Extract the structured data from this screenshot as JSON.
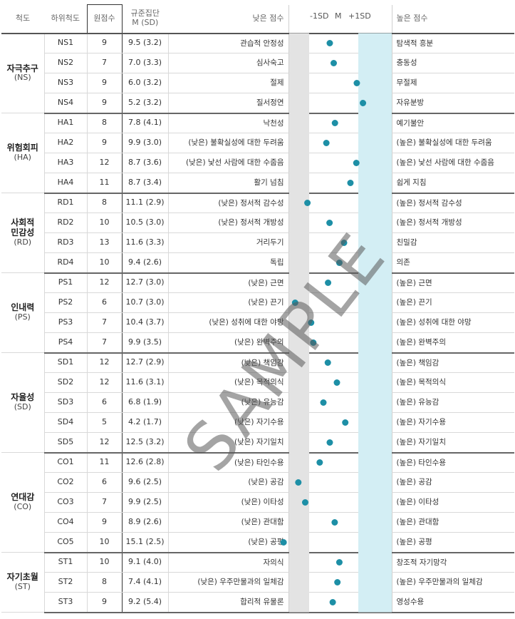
{
  "header": {
    "scale": "척도",
    "subscale": "하위척도",
    "raw": "원점수",
    "norm_line1": "규준집단",
    "norm_line2": "M (SD)",
    "low": "낮은 점수",
    "sd_minus": "-1SD",
    "mean": "M",
    "sd_plus": "+1SD",
    "high": "높은 점수"
  },
  "colors": {
    "dot": "#1d8fa6",
    "low_band": "#e3e3e3",
    "high_band": "#d3eef4"
  },
  "watermark": "SAMPLE",
  "groups": [
    {
      "name": "자극추구",
      "code": "(NS)",
      "rows": [
        {
          "sub": "NS1",
          "raw": "9",
          "norm": "9.5 (3.2)",
          "low": "관습적 안정성",
          "high": "탐색적 흥분",
          "z": -0.16
        },
        {
          "sub": "NS2",
          "raw": "7",
          "norm": "7.0 (3.3)",
          "low": "심사숙고",
          "high": "충동성",
          "z": 0.0
        },
        {
          "sub": "NS3",
          "raw": "9",
          "norm": "6.0 (3.2)",
          "low": "절제",
          "high": "무절제",
          "z": 0.94
        },
        {
          "sub": "NS4",
          "raw": "9",
          "norm": "5.2 (3.2)",
          "low": "질서정연",
          "high": "자유분방",
          "z": 1.19
        }
      ]
    },
    {
      "name": "위험회피",
      "code": "(HA)",
      "rows": [
        {
          "sub": "HA1",
          "raw": "8",
          "norm": "7.8 (4.1)",
          "low": "낙천성",
          "high": "예기불안",
          "z": 0.05
        },
        {
          "sub": "HA2",
          "raw": "9",
          "norm": "9.9 (3.0)",
          "low": "(낮은) 불확실성에 대한 두려움",
          "high": "(높은) 불확실성에 대한 두려움",
          "z": -0.3
        },
        {
          "sub": "HA3",
          "raw": "12",
          "norm": "8.7 (3.6)",
          "low": "(낮은) 낯선 사람에 대한 수줍음",
          "high": "(높은) 낯선 사람에 대한 수줍음",
          "z": 0.92
        },
        {
          "sub": "HA4",
          "raw": "11",
          "norm": "8.7 (3.4)",
          "low": "활기 넘침",
          "high": "쉽게 지침",
          "z": 0.68
        }
      ]
    },
    {
      "name": "사회적\n민감성",
      "code": "(RD)",
      "rows": [
        {
          "sub": "RD1",
          "raw": "8",
          "norm": "11.1 (2.9)",
          "low": "(낮은) 정서적 감수성",
          "high": "(높은) 정서적 감수성",
          "z": -1.07
        },
        {
          "sub": "RD2",
          "raw": "10",
          "norm": "10.5 (3.0)",
          "low": "(낮은) 정서적 개방성",
          "high": "(높은) 정서적 개방성",
          "z": -0.17
        },
        {
          "sub": "RD3",
          "raw": "13",
          "norm": "11.6 (3.3)",
          "low": "거리두기",
          "high": "친밀감",
          "z": 0.42
        },
        {
          "sub": "RD4",
          "raw": "10",
          "norm": "9.4 (2.6)",
          "low": "독립",
          "high": "의존",
          "z": 0.23
        }
      ]
    },
    {
      "name": "인내력",
      "code": "(PS)",
      "rows": [
        {
          "sub": "PS1",
          "raw": "12",
          "norm": "12.7 (3.0)",
          "low": "(낮은) 근면",
          "high": "(높은) 근면",
          "z": -0.23
        },
        {
          "sub": "PS2",
          "raw": "6",
          "norm": "10.7 (3.0)",
          "low": "(낮은) 끈기",
          "high": "(높은) 끈기",
          "z": -1.57
        },
        {
          "sub": "PS3",
          "raw": "7",
          "norm": "10.4 (3.7)",
          "low": "(낮은) 성취에 대한 야망",
          "high": "(높은) 성취에 대한 야망",
          "z": -0.92
        },
        {
          "sub": "PS4",
          "raw": "7",
          "norm": "9.9 (3.5)",
          "low": "(낮은) 완벽주의",
          "high": "(높은) 완벽주의",
          "z": -0.83
        }
      ]
    },
    {
      "name": "자율성",
      "code": "(SD)",
      "rows": [
        {
          "sub": "SD1",
          "raw": "12",
          "norm": "12.7 (2.9)",
          "low": "(낮은) 책임감",
          "high": "(높은) 책임감",
          "z": -0.24
        },
        {
          "sub": "SD2",
          "raw": "12",
          "norm": "11.6 (3.1)",
          "low": "(낮은) 목적의식",
          "high": "(높은) 목적의식",
          "z": 0.13
        },
        {
          "sub": "SD3",
          "raw": "6",
          "norm": "6.8 (1.9)",
          "low": "(낮은) 유능감",
          "high": "(높은) 유능감",
          "z": -0.42
        },
        {
          "sub": "SD4",
          "raw": "5",
          "norm": "4.2 (1.7)",
          "low": "(낮은) 자기수용",
          "high": "(높은) 자기수용",
          "z": 0.47
        },
        {
          "sub": "SD5",
          "raw": "12",
          "norm": "12.5 (3.2)",
          "low": "(낮은) 자기일치",
          "high": "(높은) 자기일치",
          "z": -0.16
        }
      ]
    },
    {
      "name": "연대감",
      "code": "(CO)",
      "rows": [
        {
          "sub": "CO1",
          "raw": "11",
          "norm": "12.6 (2.8)",
          "low": "(낮은) 타인수용",
          "high": "(높은) 타인수용",
          "z": -0.57
        },
        {
          "sub": "CO2",
          "raw": "6",
          "norm": "9.6 (2.5)",
          "low": "(낮은) 공감",
          "high": "(높은) 공감",
          "z": -1.44
        },
        {
          "sub": "CO3",
          "raw": "7",
          "norm": "9.9 (2.5)",
          "low": "(낮은) 이타성",
          "high": "(높은) 이타성",
          "z": -1.16
        },
        {
          "sub": "CO4",
          "raw": "9",
          "norm": "8.9 (2.6)",
          "low": "(낮은) 관대함",
          "high": "(높은) 관대함",
          "z": 0.04
        },
        {
          "sub": "CO5",
          "raw": "10",
          "norm": "15.1 (2.5)",
          "low": "(낮은) 공평",
          "high": "(높은) 공평",
          "z": -2.04
        }
      ]
    },
    {
      "name": "자기초월",
      "code": "(ST)",
      "rows": [
        {
          "sub": "ST1",
          "raw": "10",
          "norm": "9.1 (4.0)",
          "low": "자의식",
          "high": "창조적 자기망각",
          "z": 0.23
        },
        {
          "sub": "ST2",
          "raw": "8",
          "norm": "7.4 (4.1)",
          "low": "(낮은) 우주만물과의 일체감",
          "high": "(높은) 우주만물과의 일체감",
          "z": 0.15
        },
        {
          "sub": "ST3",
          "raw": "9",
          "norm": "9.2 (5.4)",
          "low": "합리적 유물론",
          "high": "영성수용",
          "z": -0.04
        }
      ]
    }
  ]
}
